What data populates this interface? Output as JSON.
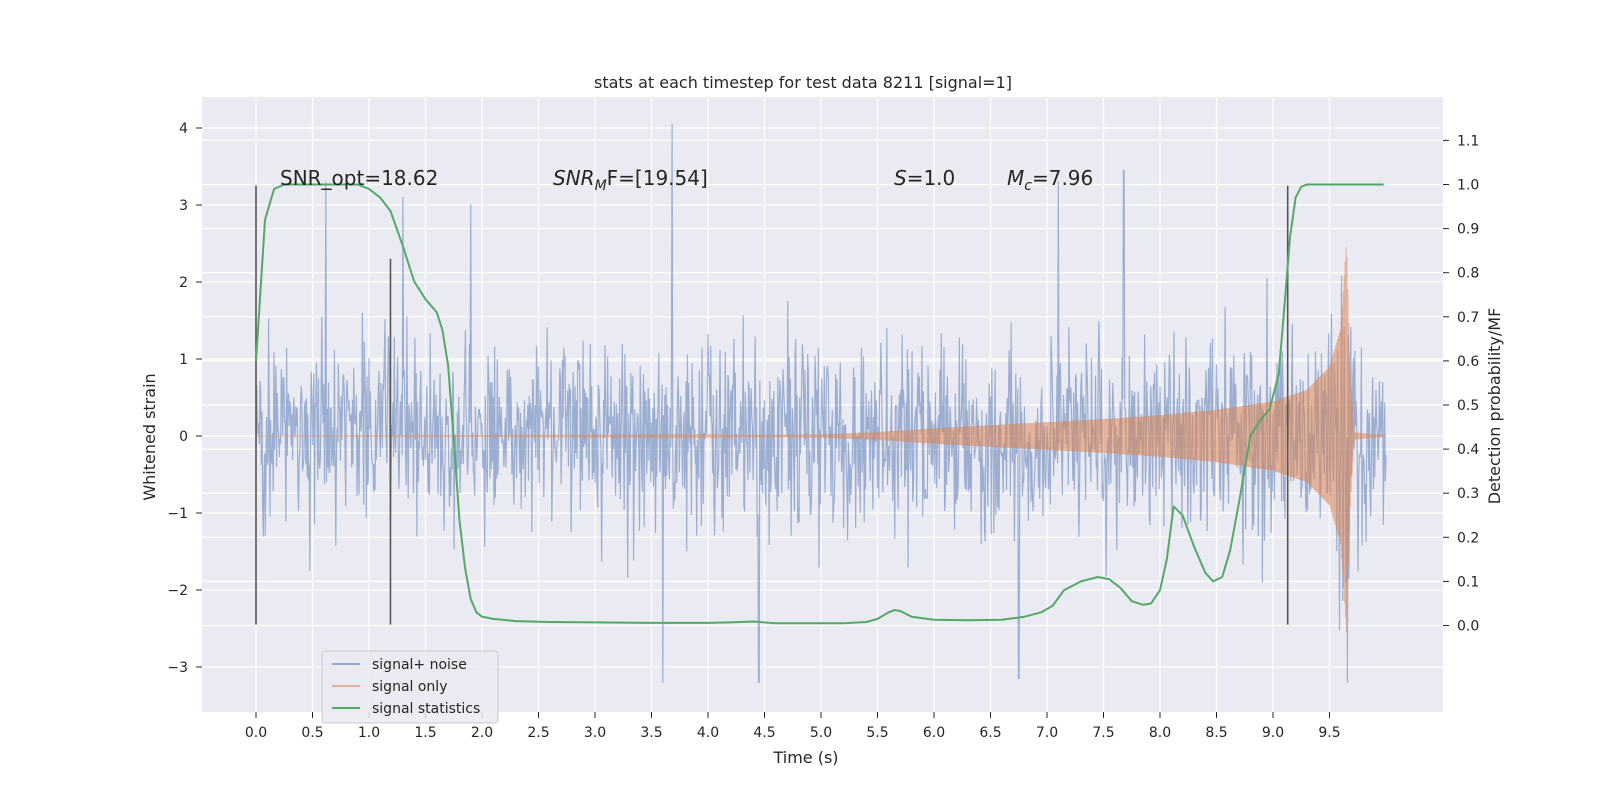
{
  "chart_data": {
    "type": "line",
    "title": "stats at each timestep for test data 8211 [signal=1]",
    "xlabel": "Time (s)",
    "ylabel_left": "Whitened strain",
    "ylabel_right": "Detection probability/MF",
    "xlim": [
      -0.48,
      10.52
    ],
    "ylim_left": [
      -3.6,
      4.4
    ],
    "ylim_right": [
      -0.2,
      1.2
    ],
    "x_ticks": [
      0.0,
      0.5,
      1.0,
      1.5,
      2.0,
      2.5,
      3.0,
      3.5,
      4.0,
      4.5,
      5.0,
      5.5,
      6.0,
      6.5,
      7.0,
      7.5,
      8.0,
      8.5,
      9.0,
      9.5
    ],
    "x_tick_labels": [
      "0.0",
      "0.5",
      "1.0",
      "1.5",
      "2.0",
      "2.5",
      "3.0",
      "3.5",
      "4.0",
      "4.5",
      "5.0",
      "5.5",
      "6.0",
      "6.5",
      "7.0",
      "7.5",
      "8.0",
      "8.5",
      "9.0",
      "9.5"
    ],
    "y_left_ticks": [
      -3,
      -2,
      -1,
      0,
      1,
      2,
      3,
      4
    ],
    "y_left_tick_labels": [
      "−3",
      "−2",
      "−1",
      "0",
      "1",
      "2",
      "3",
      "4"
    ],
    "y_right_ticks": [
      0.0,
      0.1,
      0.2,
      0.3,
      0.4,
      0.5,
      0.6,
      0.7,
      0.8,
      0.9,
      1.0,
      1.1
    ],
    "y_right_tick_labels": [
      "0.0",
      "0.1",
      "0.2",
      "0.3",
      "0.4",
      "0.5",
      "0.6",
      "0.7",
      "0.8",
      "0.9",
      "1.0",
      "1.1"
    ],
    "grid": true,
    "legend_position": "lower-left",
    "annotations": {
      "snr_opt": "SNR_opt=18.62",
      "snr_mf_main": "SNR",
      "snr_mf_sub": "M",
      "snr_mf_rest": "F=[19.54]",
      "s_main": "S",
      "s_rest": "=1.0",
      "mc_main": "M",
      "mc_sub": "c",
      "mc_rest": "=7.96"
    },
    "vertical_markers": [
      {
        "x": 0.0,
        "ymin": -2.45,
        "ymax": 3.25
      },
      {
        "x": 1.19,
        "ymin": -2.45,
        "ymax": 2.3
      },
      {
        "x": 9.13,
        "ymin": -2.45,
        "ymax": 3.25
      }
    ],
    "series": [
      {
        "name": "signal+ noise",
        "color": "#4c72b0",
        "axis": "left",
        "x_range": [
          0.0,
          10.0
        ],
        "envelope_typical": 1.55,
        "notable_peaks": [
          {
            "x": 0.62,
            "y": 3.3
          },
          {
            "x": 1.3,
            "y": 3.1
          },
          {
            "x": 1.9,
            "y": 3.0
          },
          {
            "x": 3.68,
            "y": 4.05
          },
          {
            "x": 7.1,
            "y": 3.3
          },
          {
            "x": 7.68,
            "y": 3.45
          },
          {
            "x": 9.66,
            "y": -3.2
          },
          {
            "x": 3.6,
            "y": -3.2
          },
          {
            "x": 4.45,
            "y": -3.2
          },
          {
            "x": 6.75,
            "y": -3.15
          }
        ]
      },
      {
        "name": "signal only",
        "color": "#dd8452",
        "axis": "left",
        "x": [
          0.0,
          2.0,
          4.0,
          5.0,
          5.5,
          6.0,
          6.5,
          7.0,
          7.5,
          8.0,
          8.5,
          9.0,
          9.3,
          9.5,
          9.6,
          9.65,
          9.68,
          9.72,
          10.0
        ],
        "amplitude": [
          0.0,
          0.005,
          0.01,
          0.02,
          0.05,
          0.1,
          0.14,
          0.18,
          0.22,
          0.27,
          0.34,
          0.45,
          0.6,
          0.9,
          1.4,
          2.55,
          1.0,
          0.05,
          0.0
        ]
      },
      {
        "name": "signal statistics",
        "color": "#55a868",
        "axis": "right",
        "x": [
          0.0,
          0.08,
          0.16,
          0.25,
          0.35,
          0.5,
          0.7,
          0.9,
          1.0,
          1.1,
          1.19,
          1.3,
          1.4,
          1.5,
          1.6,
          1.65,
          1.7,
          1.75,
          1.8,
          1.85,
          1.9,
          1.95,
          2.0,
          2.1,
          2.3,
          2.6,
          3.0,
          3.5,
          4.0,
          4.2,
          4.4,
          4.6,
          4.8,
          5.0,
          5.2,
          5.4,
          5.5,
          5.6,
          5.65,
          5.7,
          5.8,
          6.0,
          6.3,
          6.6,
          6.8,
          6.95,
          7.05,
          7.15,
          7.3,
          7.45,
          7.55,
          7.65,
          7.75,
          7.85,
          7.92,
          8.0,
          8.06,
          8.12,
          8.2,
          8.3,
          8.4,
          8.47,
          8.55,
          8.62,
          8.7,
          8.8,
          8.9,
          8.97,
          9.05,
          9.1,
          9.15,
          9.2,
          9.25,
          9.3,
          9.4,
          9.6,
          9.8,
          9.98
        ],
        "y": [
          0.6,
          0.92,
          0.99,
          1.0,
          1.0,
          1.0,
          1.0,
          1.0,
          0.99,
          0.97,
          0.94,
          0.86,
          0.78,
          0.74,
          0.71,
          0.67,
          0.59,
          0.42,
          0.24,
          0.13,
          0.06,
          0.03,
          0.02,
          0.015,
          0.01,
          0.008,
          0.007,
          0.006,
          0.006,
          0.007,
          0.009,
          0.005,
          0.005,
          0.005,
          0.005,
          0.008,
          0.015,
          0.03,
          0.035,
          0.033,
          0.02,
          0.013,
          0.012,
          0.013,
          0.02,
          0.03,
          0.045,
          0.08,
          0.1,
          0.11,
          0.105,
          0.085,
          0.055,
          0.047,
          0.05,
          0.08,
          0.15,
          0.27,
          0.25,
          0.18,
          0.12,
          0.1,
          0.11,
          0.17,
          0.28,
          0.43,
          0.47,
          0.49,
          0.57,
          0.72,
          0.88,
          0.97,
          0.995,
          1.0,
          1.0,
          1.0,
          1.0,
          1.0
        ]
      }
    ]
  }
}
